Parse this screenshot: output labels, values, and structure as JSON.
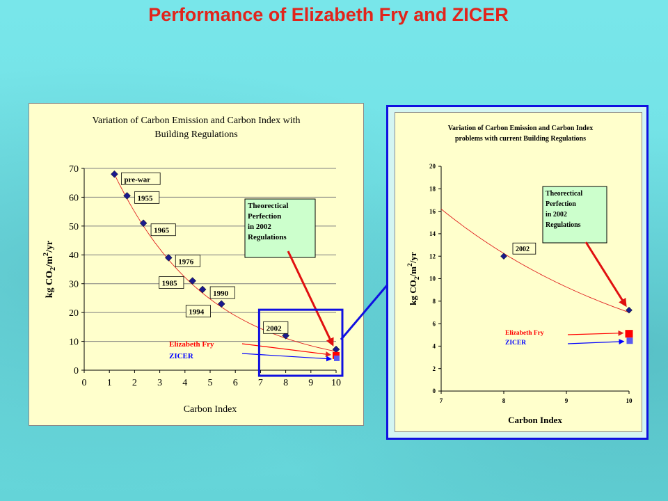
{
  "slide": {
    "title": "Performance of Elizabeth Fry and ZICER",
    "colors": {
      "background": "#71e2e6",
      "title": "#e1241c",
      "plot_area": "#ffffcc",
      "data_marker": "#1a1a8c",
      "trend_line": "#e02020",
      "elizabeth_fry": "#ff0000",
      "zicer": "#0000ff",
      "zoom_box": "#1010e0"
    }
  },
  "chart_data": [
    {
      "type": "scatter",
      "title": "Variation of Carbon Emission and Carbon Index with Building Regulations",
      "title_lines": [
        "Variation of Carbon Emission and Carbon Index with",
        "Building Regulations"
      ],
      "xlabel": "Carbon Index",
      "ylabel": "kg CO2/m2/yr",
      "ylabel_parts": [
        "kg CO",
        "2",
        "/m",
        "2",
        "/yr"
      ],
      "xlim": [
        0,
        10
      ],
      "ylim": [
        0,
        70
      ],
      "xticks": [
        0,
        1,
        2,
        3,
        4,
        5,
        6,
        7,
        8,
        9,
        10
      ],
      "yticks": [
        0,
        10,
        20,
        30,
        40,
        50,
        60,
        70
      ],
      "grid": "horizontal",
      "points": [
        {
          "label": "pre-war",
          "x": 1.2,
          "y": 68.0
        },
        {
          "label": "1955",
          "x": 1.7,
          "y": 60.5
        },
        {
          "label": "1965",
          "x": 2.35,
          "y": 51.0
        },
        {
          "label": "1976",
          "x": 3.35,
          "y": 39.0
        },
        {
          "label": "1985",
          "x": 4.3,
          "y": 31.0
        },
        {
          "label": "1990",
          "x": 4.7,
          "y": 28.0
        },
        {
          "label": "1994",
          "x": 5.45,
          "y": 23.0
        },
        {
          "label": "2002",
          "x": 8.0,
          "y": 12.0
        },
        {
          "label": "",
          "x": 10.0,
          "y": 7.2
        }
      ],
      "trend": {
        "x0": 1.2,
        "y0": 68.0,
        "x1": 10.0,
        "y1": 6.5
      },
      "annotation": "Theorectical Perfection in 2002 Regulations",
      "annotation_lines": [
        "Theorectical",
        "Perfection",
        " in 2002",
        "Regulations"
      ],
      "special_points": [
        {
          "name": "Elizabeth Fry",
          "x": 10.0,
          "y": 5.1,
          "color": "#ff0000"
        },
        {
          "name": "ZICER",
          "x": 10.0,
          "y": 4.6,
          "color": "#5a5af0"
        }
      ],
      "zoom_region": {
        "x": [
          7,
          10
        ],
        "y": [
          0,
          20
        ]
      }
    },
    {
      "type": "scatter",
      "title": "Variation of Carbon Emission and Carbon Index problems with current Building Regulations",
      "title_lines": [
        "Variation of Carbon Emission and Carbon Index",
        "problems with current Building Regulations"
      ],
      "xlabel": "Carbon Index",
      "ylabel": "kg CO2/m2/yr",
      "ylabel_parts": [
        "kg CO",
        "2",
        "/m",
        "2",
        "/yr"
      ],
      "xlim": [
        7,
        10
      ],
      "ylim": [
        0,
        20
      ],
      "xticks": [
        7,
        8,
        9,
        10
      ],
      "yticks": [
        0,
        2,
        4,
        6,
        8,
        10,
        12,
        14,
        16,
        18,
        20
      ],
      "grid": "none",
      "points": [
        {
          "label": "2002",
          "x": 8.0,
          "y": 12.0
        },
        {
          "label": "",
          "x": 10.0,
          "y": 7.2
        }
      ],
      "trend": {
        "x0": 7.0,
        "y0": 16.2,
        "x1": 10.0,
        "y1": 7.0
      },
      "annotation": "Theorectical Perfection in 2002 Regulations",
      "annotation_lines": [
        "Theorectical",
        "Perfection",
        " in 2002",
        "Regulations"
      ],
      "special_points": [
        {
          "name": "Elizabeth Fry",
          "x": 10.0,
          "y": 5.1,
          "color": "#ff0000"
        },
        {
          "name": "ZICER",
          "x": 10.0,
          "y": 4.6,
          "color": "#5a5af0"
        }
      ]
    }
  ]
}
